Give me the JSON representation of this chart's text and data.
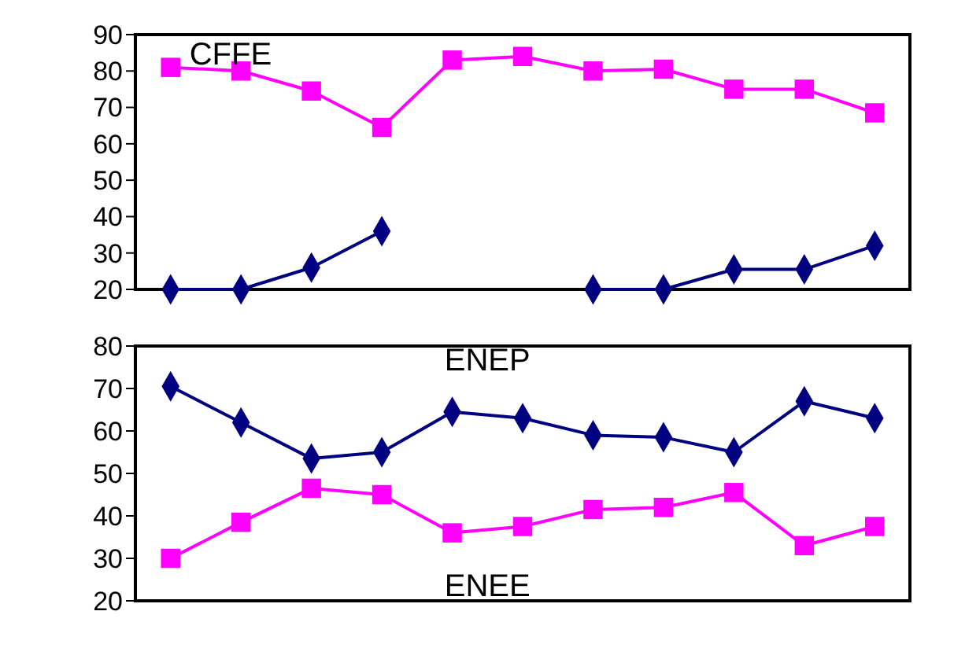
{
  "chart_data": [
    {
      "type": "line",
      "categories": [
        null,
        null,
        null,
        null,
        null,
        null,
        null,
        null,
        null,
        null,
        null
      ],
      "ylim": [
        20,
        90
      ],
      "yticks": [
        20,
        30,
        40,
        50,
        60,
        70,
        80,
        90
      ],
      "grid": false,
      "series": [
        {
          "name": "CFFE",
          "color": "#ff00ff",
          "marker": "square",
          "values": [
            81,
            80,
            74.5,
            64.5,
            83,
            84,
            80,
            80.5,
            75,
            75,
            68.5
          ]
        },
        {
          "color": "#000080",
          "marker": "diamond",
          "values": [
            20,
            20,
            26,
            36,
            null,
            null,
            20,
            20,
            25.5,
            25.5,
            32
          ]
        }
      ]
    },
    {
      "type": "line",
      "categories": [
        null,
        null,
        null,
        null,
        null,
        null,
        null,
        null,
        null,
        null,
        null
      ],
      "ylim": [
        20,
        80
      ],
      "yticks": [
        20,
        30,
        40,
        50,
        60,
        70,
        80
      ],
      "grid": false,
      "series": [
        {
          "name": "ENEP",
          "color": "#000080",
          "marker": "diamond",
          "values": [
            70.5,
            62,
            53.5,
            55,
            64.5,
            63,
            59,
            58.5,
            55,
            67,
            63
          ]
        },
        {
          "name": "ENEE",
          "color": "#ff00ff",
          "marker": "square",
          "values": [
            30,
            38.5,
            46.5,
            45,
            36,
            37.5,
            41.5,
            42,
            45.5,
            33,
            37.5
          ]
        }
      ]
    }
  ]
}
